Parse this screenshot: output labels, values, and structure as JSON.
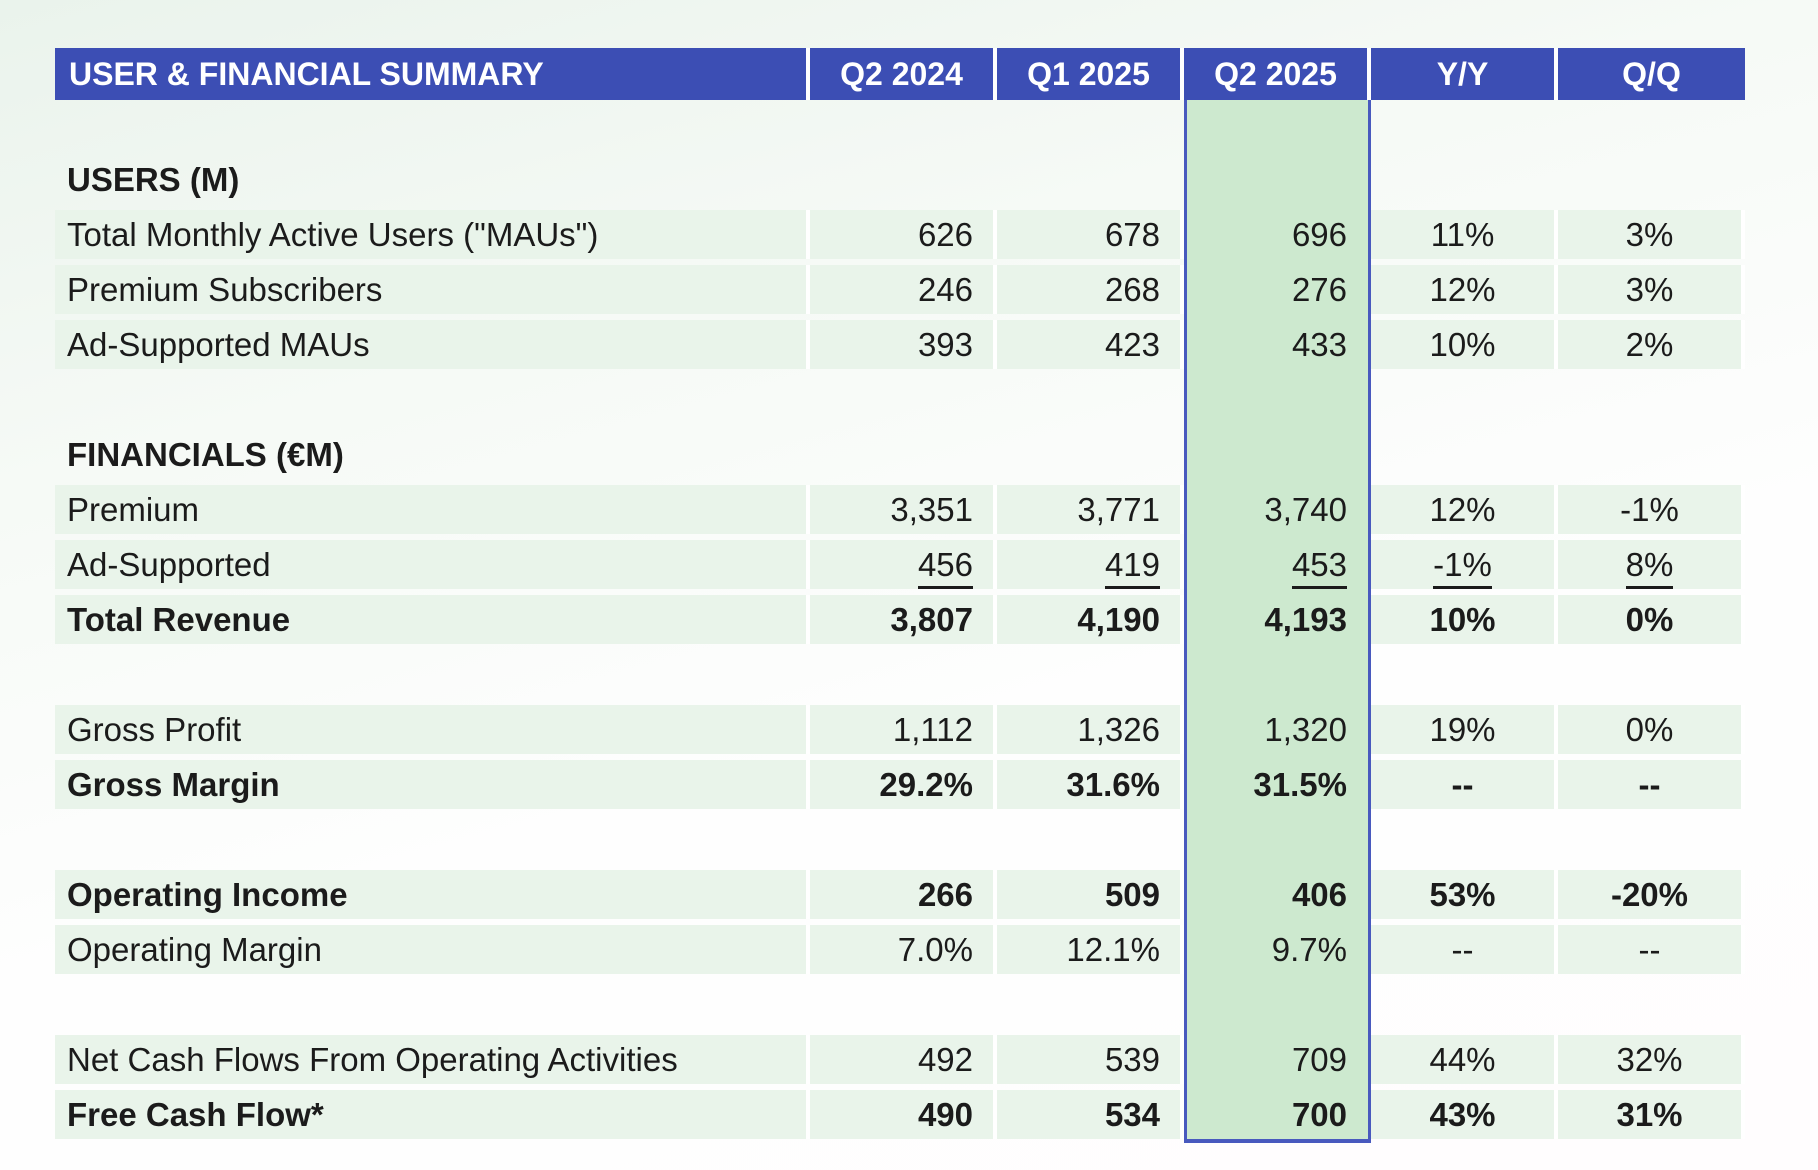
{
  "colors": {
    "header_bg": "#3c4eb4",
    "header_text": "#ffffff",
    "row_green": "#e9f4ea",
    "highlight_fill": "#cde9cf",
    "highlight_border": "#4859be",
    "text": "#1b1b1b"
  },
  "table": {
    "title": "USER & FINANCIAL SUMMARY",
    "columns": [
      "Q2 2024",
      "Q1 2025",
      "Q2 2025",
      "Y/Y",
      "Q/Q"
    ],
    "highlighted_column": "Q2 2025",
    "rows": [
      {
        "type": "spacer"
      },
      {
        "type": "section",
        "label": "USERS (M)"
      },
      {
        "type": "data",
        "label": "Total Monthly Active Users (\"MAUs\")",
        "values": [
          "626",
          "678",
          "696",
          "11%",
          "3%"
        ]
      },
      {
        "type": "data",
        "label": "Premium Subscribers",
        "values": [
          "246",
          "268",
          "276",
          "12%",
          "3%"
        ]
      },
      {
        "type": "data",
        "label": "Ad-Supported MAUs",
        "values": [
          "393",
          "423",
          "433",
          "10%",
          "2%"
        ]
      },
      {
        "type": "spacer"
      },
      {
        "type": "section",
        "label": "FINANCIALS (€M)"
      },
      {
        "type": "data",
        "label": "Premium",
        "values": [
          "3,351",
          "3,771",
          "3,740",
          "12%",
          "-1%"
        ]
      },
      {
        "type": "data",
        "label": "Ad-Supported",
        "values": [
          "456",
          "419",
          "453",
          "-1%",
          "8%"
        ],
        "underline": true
      },
      {
        "type": "data",
        "label": "Total Revenue",
        "values": [
          "3,807",
          "4,190",
          "4,193",
          "10%",
          "0%"
        ],
        "bold": true
      },
      {
        "type": "spacer"
      },
      {
        "type": "data",
        "label": "Gross Profit",
        "values": [
          "1,112",
          "1,326",
          "1,320",
          "19%",
          "0%"
        ]
      },
      {
        "type": "data",
        "label": "Gross Margin",
        "values": [
          "29.2%",
          "31.6%",
          "31.5%",
          "--",
          "--"
        ],
        "bold": true
      },
      {
        "type": "spacer"
      },
      {
        "type": "data",
        "label": "Operating Income",
        "values": [
          "266",
          "509",
          "406",
          "53%",
          "-20%"
        ],
        "bold": true
      },
      {
        "type": "data",
        "label": "Operating Margin",
        "values": [
          "7.0%",
          "12.1%",
          "9.7%",
          "--",
          "--"
        ]
      },
      {
        "type": "spacer"
      },
      {
        "type": "data",
        "label": "Net Cash Flows From Operating Activities",
        "values": [
          "492",
          "539",
          "709",
          "44%",
          "32%"
        ]
      },
      {
        "type": "data",
        "label": "Free Cash Flow*",
        "values": [
          "490",
          "534",
          "700",
          "43%",
          "31%"
        ],
        "bold": true
      }
    ]
  }
}
